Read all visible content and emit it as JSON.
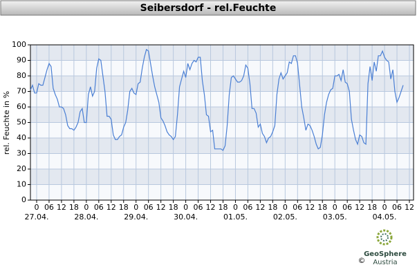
{
  "chart_data": {
    "type": "line",
    "title": "Seibersdorf - rel.Feuchte",
    "ylabel": "rel. Feuchte in %",
    "xlim": [
      -3,
      182
    ],
    "ylim": [
      0,
      100
    ],
    "yticks": [
      0,
      10,
      20,
      30,
      40,
      50,
      60,
      70,
      80,
      90,
      100
    ],
    "xticks": [
      0,
      {
        "value": 6,
        "label": "06"
      },
      12,
      18,
      {
        "value": 24,
        "label": "0"
      },
      {
        "value": 30,
        "label": "06"
      },
      {
        "value": 36,
        "label": "12"
      },
      {
        "value": 42,
        "label": "18"
      },
      {
        "value": 48,
        "label": "0"
      },
      {
        "value": 54,
        "label": "06"
      },
      {
        "value": 60,
        "label": "12"
      },
      {
        "value": 66,
        "label": "18"
      },
      {
        "value": 72,
        "label": "0"
      },
      {
        "value": 78,
        "label": "06"
      },
      {
        "value": 84,
        "label": "12"
      },
      {
        "value": 90,
        "label": "18"
      },
      {
        "value": 96,
        "label": "0"
      },
      {
        "value": 102,
        "label": "06"
      },
      {
        "value": 108,
        "label": "12"
      },
      {
        "value": 114,
        "label": "18"
      },
      {
        "value": 120,
        "label": "0"
      },
      {
        "value": 126,
        "label": "06"
      },
      {
        "value": 132,
        "label": "12"
      },
      {
        "value": 138,
        "label": "18"
      },
      {
        "value": 144,
        "label": "0"
      },
      {
        "value": 150,
        "label": "06"
      },
      {
        "value": 156,
        "label": "12"
      },
      {
        "value": 162,
        "label": "18"
      },
      {
        "value": 168,
        "label": "0"
      },
      {
        "value": 174,
        "label": "06"
      },
      {
        "value": 180,
        "label": "12"
      }
    ],
    "day_labels": [
      {
        "value": 0,
        "label": "27.04."
      },
      {
        "value": 24,
        "label": "28.04."
      },
      {
        "value": 48,
        "label": "29.04."
      },
      {
        "value": 72,
        "label": "30.04."
      },
      {
        "value": 96,
        "label": "01.05."
      },
      {
        "value": 120,
        "label": "02.05."
      },
      {
        "value": 144,
        "label": "03.05."
      },
      {
        "value": 168,
        "label": "04.05."
      }
    ],
    "grid": true,
    "bands": true,
    "band_color": "#e3e8f0",
    "x": [
      -3,
      -2,
      -1,
      0,
      1,
      2,
      3,
      4,
      5,
      6,
      7,
      8,
      9,
      10,
      11,
      12,
      13,
      14,
      15,
      16,
      17,
      18,
      19,
      20,
      21,
      22,
      23,
      24,
      25,
      26,
      27,
      28,
      29,
      30,
      31,
      32,
      33,
      34,
      35,
      36,
      37,
      38,
      39,
      40,
      41,
      42,
      43,
      44,
      45,
      46,
      47,
      48,
      49,
      50,
      51,
      52,
      53,
      54,
      55,
      56,
      57,
      58,
      59,
      60,
      61,
      62,
      63,
      64,
      65,
      66,
      67,
      68,
      69,
      70,
      71,
      72,
      73,
      74,
      75,
      76,
      77,
      78,
      79,
      80,
      81,
      82,
      83,
      84,
      85,
      86,
      87,
      88,
      89,
      90,
      91,
      92,
      93,
      94,
      95,
      96,
      97,
      98,
      99,
      100,
      101,
      102,
      103,
      104,
      105,
      106,
      107,
      108,
      109,
      110,
      111,
      112,
      113,
      114,
      115,
      116,
      117,
      118,
      119,
      120,
      121,
      122,
      123,
      124,
      125,
      126,
      127,
      128,
      129,
      130,
      131,
      132,
      133,
      134,
      135,
      136,
      137,
      138,
      139,
      140,
      141,
      142,
      143,
      144,
      145,
      146,
      147,
      148,
      149,
      150,
      151,
      152,
      153,
      154,
      155,
      156,
      157,
      158,
      159,
      160,
      161,
      162,
      163,
      164,
      165,
      166,
      167,
      168,
      169,
      170,
      171,
      172,
      173,
      174,
      175,
      176,
      177
    ],
    "series": [
      {
        "name": "rel. Feuchte",
        "color": "#4a7fd4",
        "values": [
          71,
          74,
          69,
          69,
          75,
          74,
          74,
          79,
          84,
          88,
          86,
          72,
          68,
          65,
          60,
          60,
          59,
          55,
          48,
          46,
          46,
          45,
          47,
          50,
          57,
          59,
          50,
          50,
          68,
          73,
          67,
          70,
          85,
          91,
          90,
          80,
          70,
          54,
          54,
          52,
          42,
          39,
          39,
          41,
          42,
          47,
          50,
          58,
          70,
          72,
          69,
          68,
          75,
          76,
          85,
          92,
          97,
          96,
          88,
          80,
          73,
          68,
          63,
          53,
          51,
          48,
          44,
          42,
          41,
          39,
          41,
          55,
          73,
          78,
          83,
          79,
          88,
          84,
          88,
          90,
          89,
          92,
          92,
          77,
          68,
          55,
          54,
          44,
          45,
          33,
          33,
          33,
          33,
          32,
          35,
          48,
          68,
          79,
          80,
          78,
          76,
          76,
          77,
          80,
          87,
          85,
          75,
          59,
          59,
          56,
          47,
          49,
          43,
          41,
          37,
          40,
          41,
          44,
          48,
          68,
          78,
          82,
          78,
          80,
          82,
          89,
          88,
          93,
          93,
          88,
          74,
          60,
          53,
          45,
          49,
          48,
          45,
          41,
          36,
          33,
          34,
          42,
          55,
          63,
          68,
          71,
          72,
          80,
          80,
          81,
          77,
          84,
          76,
          75,
          70,
          52,
          45,
          39,
          36,
          42,
          41,
          37,
          36,
          75,
          86,
          77,
          89,
          83,
          93,
          93,
          96,
          92,
          90,
          89,
          78,
          84,
          70,
          63,
          66,
          70,
          74
        ]
      }
    ],
    "logo_text": "GeoSphere",
    "logo_subtext": "Austria",
    "copyright": "©"
  }
}
